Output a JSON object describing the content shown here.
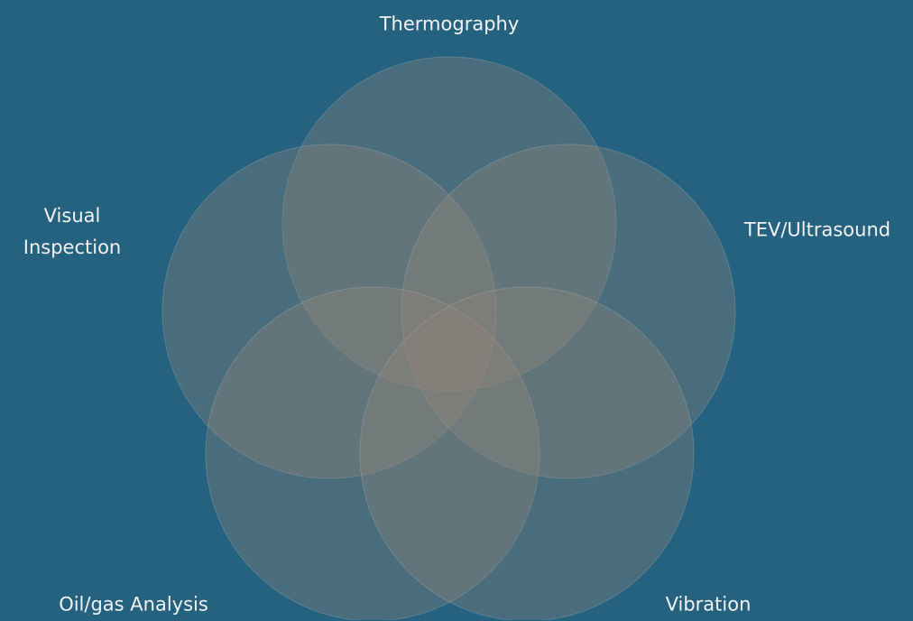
{
  "nodes": [
    {
      "label": "Thermography"
    },
    {
      "label": "Visual Inspection"
    },
    {
      "label": "TEV/Ultrasound"
    },
    {
      "label": "Oil/gas Analysis"
    },
    {
      "label": "Vibration"
    }
  ]
}
